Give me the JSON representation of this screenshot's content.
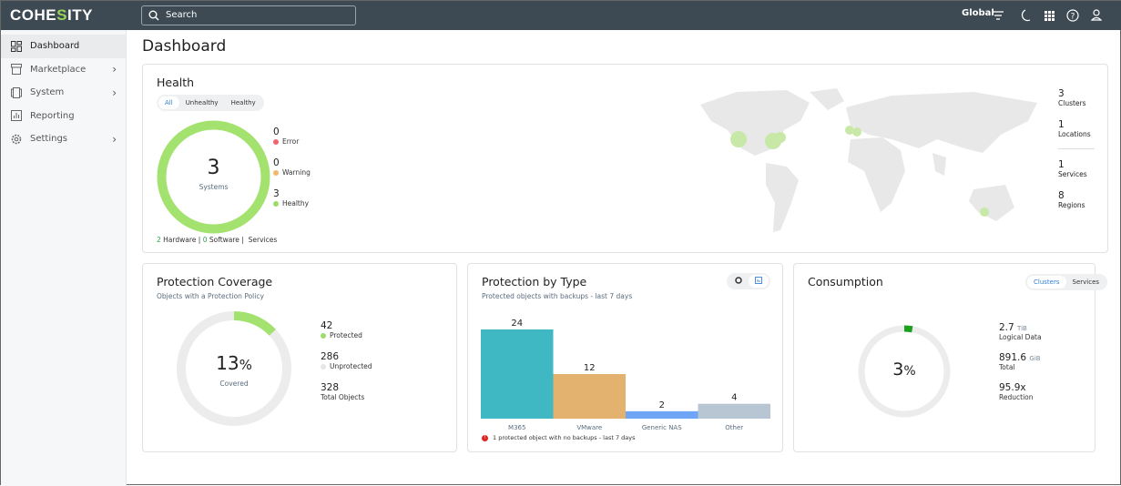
{
  "app": {
    "logo": "COHESITY",
    "search_placeholder": "Search",
    "scope": "Global"
  },
  "sidebar": {
    "items": [
      {
        "label": "Dashboard",
        "icon": "dashboard-icon"
      },
      {
        "label": "Marketplace",
        "icon": "store-icon"
      },
      {
        "label": "System",
        "icon": "system-icon"
      },
      {
        "label": "Reporting",
        "icon": "reporting-icon"
      },
      {
        "label": "Settings",
        "icon": "gear-icon"
      }
    ]
  },
  "page": {
    "title": "Dashboard"
  },
  "health": {
    "title": "Health",
    "filters": [
      "All",
      "Unhealthy",
      "Healthy"
    ],
    "total": "3",
    "total_label": "Systems",
    "legend": [
      {
        "value": "0",
        "label": "Error",
        "color": "#f0646e"
      },
      {
        "value": "0",
        "label": "Warning",
        "color": "#f5b66a"
      },
      {
        "value": "3",
        "label": "Healthy",
        "color": "#9ddb6a"
      }
    ],
    "hardware_count": "2",
    "hardware_label": "Hardware",
    "software_count": "0",
    "software_label": "Software",
    "services_label": "Services",
    "stats": [
      {
        "value": "3",
        "label": "Clusters"
      },
      {
        "value": "1",
        "label": "Locations"
      },
      {
        "value": "1",
        "label": "Services"
      },
      {
        "value": "8",
        "label": "Regions"
      }
    ]
  },
  "coverage": {
    "title": "Protection Coverage",
    "subtitle": "Objects with a Protection Policy",
    "percent_value": "13",
    "percent_sign": "%",
    "percent_label": "Covered",
    "stats": [
      {
        "value": "42",
        "label": "Protected",
        "color": "#9ddb6a"
      },
      {
        "value": "286",
        "label": "Unprotected",
        "color": "#e6e6e6"
      },
      {
        "value": "328",
        "label": "Total Objects"
      }
    ]
  },
  "by_type": {
    "title": "Protection by Type",
    "subtitle": "Protected objects with backups - last 7 days",
    "warning": "1 protected object with no backups - last 7 days"
  },
  "chart_data": {
    "type": "bar",
    "categories": [
      "M365",
      "VMware",
      "Generic NAS",
      "Other"
    ],
    "values": [
      24,
      12,
      2,
      4
    ],
    "colors": [
      "#3fb8c4",
      "#e2b26e",
      "#6ea5f5",
      "#b7c6d2"
    ]
  },
  "consumption": {
    "title": "Consumption",
    "tabs": [
      "Clusters",
      "Services"
    ],
    "percent_value": "3",
    "percent_sign": "%",
    "stats": [
      {
        "value": "2.7",
        "unit": "TiB",
        "label": "Logical Data"
      },
      {
        "value": "891.6",
        "unit": "GiB",
        "label": "Total"
      },
      {
        "value": "95.9x",
        "unit": "",
        "label": "Reduction"
      }
    ]
  }
}
